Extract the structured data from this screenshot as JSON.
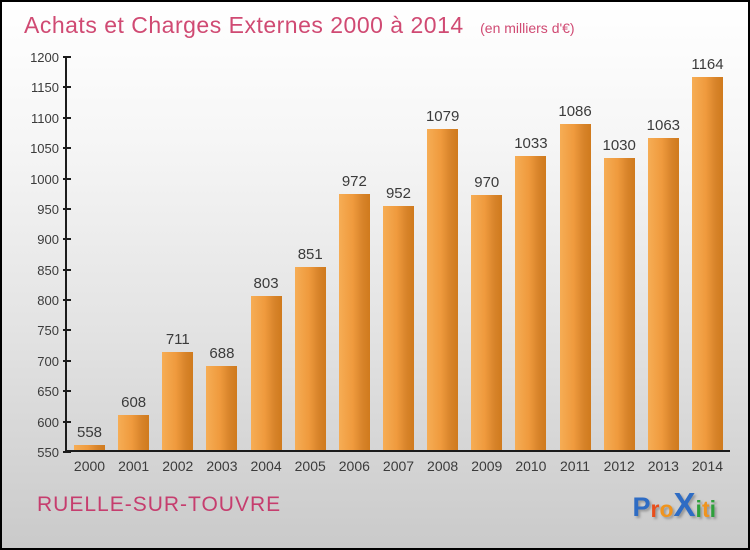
{
  "header": {
    "title": "Achats et Charges Externes 2000 à 2014",
    "subtitle": "(en milliers d'€)"
  },
  "chart_data": {
    "type": "bar",
    "categories": [
      "2000",
      "2001",
      "2002",
      "2003",
      "2004",
      "2005",
      "2006",
      "2007",
      "2008",
      "2009",
      "2010",
      "2011",
      "2012",
      "2013",
      "2014"
    ],
    "values": [
      558,
      608,
      711,
      688,
      803,
      851,
      972,
      952,
      1079,
      970,
      1033,
      1086,
      1030,
      1063,
      1164
    ],
    "title": "Achats et Charges Externes 2000 à 2014",
    "xlabel": "",
    "ylabel": "",
    "ylim": [
      550,
      1200
    ],
    "ytick_step": 50,
    "grid": false,
    "legend": false,
    "value_labels": true,
    "bar_color_left": "#f6ad55",
    "bar_color_right": "#cf7a1d"
  },
  "footer": {
    "location": "RUELLE-SUR-TOUVRE",
    "logo_letters": [
      {
        "ch": "P",
        "color": "#2e6cc4",
        "size": 27
      },
      {
        "ch": "r",
        "color": "#e94e1b",
        "size": 23
      },
      {
        "ch": "o",
        "color": "#f0941d",
        "size": 23
      },
      {
        "ch": "X",
        "color": "#2e6cc4",
        "size": 33
      },
      {
        "ch": "i",
        "color": "#2ea03c",
        "size": 23
      },
      {
        "ch": "t",
        "color": "#f0941d",
        "size": 23
      },
      {
        "ch": "i",
        "color": "#2ea03c",
        "size": 23
      }
    ]
  },
  "colors": {
    "title_text": "#d04a73",
    "location_text": "#c63d6e",
    "axis_text": "#3b3b3b",
    "axis_line": "#1c1c1c",
    "background_top": "#ffffff",
    "background_bottom": "#cacaca",
    "border": "#000000"
  }
}
